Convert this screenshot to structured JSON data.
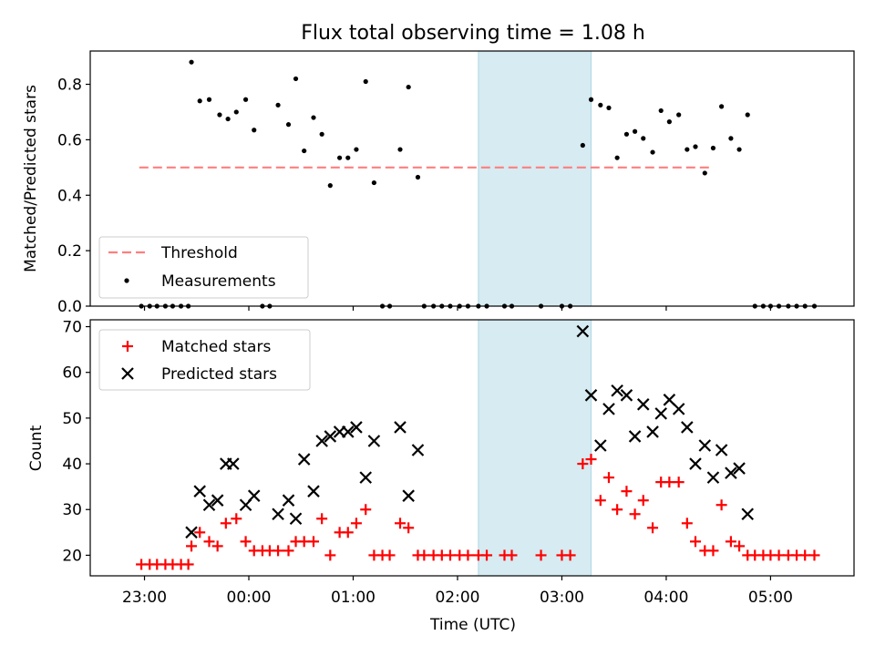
{
  "title": "Flux total observing time = 1.08 h",
  "chart_data": [
    {
      "type": "scatter",
      "ylabel": "Matched/Predicted stars",
      "xlabel": "",
      "xlim": [
        -0.52,
        6.8
      ],
      "ylim": [
        0,
        0.92
      ],
      "yticks": [
        "0.0",
        "0.2",
        "0.4",
        "0.6",
        "0.8"
      ],
      "shaded_region": [
        3.2,
        4.28
      ],
      "threshold": {
        "name": "Threshold",
        "y": 0.5,
        "x": [
          -0.05,
          5.42
        ],
        "color": "#ff7f7f"
      },
      "legend": {
        "placement": "lower left",
        "entries": [
          "Threshold",
          "Measurements"
        ]
      },
      "series": [
        {
          "name": "Measurements",
          "color": "#000000",
          "points": [
            [
              -0.03,
              0
            ],
            [
              0.05,
              0
            ],
            [
              0.12,
              0
            ],
            [
              0.2,
              0
            ],
            [
              0.27,
              0
            ],
            [
              0.35,
              0
            ],
            [
              0.42,
              0
            ],
            [
              0.45,
              0.88
            ],
            [
              0.53,
              0.74
            ],
            [
              0.62,
              0.745
            ],
            [
              0.72,
              0.69
            ],
            [
              0.8,
              0.675
            ],
            [
              0.88,
              0.7
            ],
            [
              0.97,
              0.745
            ],
            [
              1.05,
              0.635
            ],
            [
              1.13,
              0
            ],
            [
              1.2,
              0
            ],
            [
              1.28,
              0.725
            ],
            [
              1.38,
              0.655
            ],
            [
              1.45,
              0.82
            ],
            [
              1.53,
              0.56
            ],
            [
              1.62,
              0.68
            ],
            [
              1.7,
              0.62
            ],
            [
              1.78,
              0.435
            ],
            [
              1.87,
              0.535
            ],
            [
              1.95,
              0.535
            ],
            [
              2.03,
              0.565
            ],
            [
              2.12,
              0.81
            ],
            [
              2.2,
              0.445
            ],
            [
              2.28,
              0
            ],
            [
              2.35,
              0
            ],
            [
              2.45,
              0.565
            ],
            [
              2.53,
              0.79
            ],
            [
              2.62,
              0.465
            ],
            [
              2.68,
              0
            ],
            [
              2.77,
              0
            ],
            [
              2.85,
              0
            ],
            [
              2.93,
              0
            ],
            [
              3.02,
              0
            ],
            [
              3.1,
              0
            ],
            [
              3.2,
              0
            ],
            [
              3.28,
              0
            ],
            [
              3.45,
              0
            ],
            [
              3.52,
              0
            ],
            [
              3.8,
              0
            ],
            [
              4.0,
              0
            ],
            [
              4.08,
              0
            ],
            [
              4.2,
              0.58
            ],
            [
              4.28,
              0.745
            ],
            [
              4.37,
              0.725
            ],
            [
              4.45,
              0.715
            ],
            [
              4.53,
              0.535
            ],
            [
              4.62,
              0.62
            ],
            [
              4.7,
              0.63
            ],
            [
              4.78,
              0.605
            ],
            [
              4.87,
              0.555
            ],
            [
              4.95,
              0.705
            ],
            [
              5.03,
              0.665
            ],
            [
              5.12,
              0.69
            ],
            [
              5.2,
              0.565
            ],
            [
              5.28,
              0.575
            ],
            [
              5.37,
              0.48
            ],
            [
              5.45,
              0.57
            ],
            [
              5.53,
              0.72
            ],
            [
              5.62,
              0.605
            ],
            [
              5.7,
              0.565
            ],
            [
              5.78,
              0.69
            ],
            [
              5.85,
              0
            ],
            [
              5.93,
              0
            ],
            [
              6.0,
              0
            ],
            [
              6.08,
              0
            ],
            [
              6.17,
              0
            ],
            [
              6.25,
              0
            ],
            [
              6.33,
              0
            ],
            [
              6.42,
              0
            ]
          ]
        }
      ]
    },
    {
      "type": "scatter",
      "ylabel": "Count",
      "xlabel": "Time (UTC)",
      "xlim": [
        -0.52,
        6.8
      ],
      "ylim": [
        15.5,
        71.5
      ],
      "xticks": [
        "23:00",
        "00:00",
        "01:00",
        "02:00",
        "03:00",
        "04:00",
        "05:00"
      ],
      "yticks": [
        "20",
        "30",
        "40",
        "50",
        "60",
        "70"
      ],
      "shaded_region": [
        3.2,
        4.28
      ],
      "legend": {
        "placement": "upper left",
        "entries": [
          "Matched stars",
          "Predicted stars"
        ]
      },
      "series": [
        {
          "name": "Matched stars",
          "marker": "plus",
          "color": "#ff0000",
          "points": [
            [
              -0.03,
              18
            ],
            [
              0.05,
              18
            ],
            [
              0.12,
              18
            ],
            [
              0.2,
              18
            ],
            [
              0.27,
              18
            ],
            [
              0.35,
              18
            ],
            [
              0.42,
              18
            ],
            [
              0.45,
              22
            ],
            [
              0.53,
              25
            ],
            [
              0.62,
              23
            ],
            [
              0.7,
              22
            ],
            [
              0.78,
              27
            ],
            [
              0.88,
              28
            ],
            [
              0.97,
              23
            ],
            [
              1.05,
              21
            ],
            [
              1.13,
              21
            ],
            [
              1.2,
              21
            ],
            [
              1.28,
              21
            ],
            [
              1.38,
              21
            ],
            [
              1.45,
              23
            ],
            [
              1.53,
              23
            ],
            [
              1.62,
              23
            ],
            [
              1.7,
              28
            ],
            [
              1.78,
              20
            ],
            [
              1.87,
              25
            ],
            [
              1.95,
              25
            ],
            [
              2.03,
              27
            ],
            [
              2.12,
              30
            ],
            [
              2.2,
              20
            ],
            [
              2.28,
              20
            ],
            [
              2.35,
              20
            ],
            [
              2.45,
              27
            ],
            [
              2.53,
              26
            ],
            [
              2.62,
              20
            ],
            [
              2.68,
              20
            ],
            [
              2.77,
              20
            ],
            [
              2.85,
              20
            ],
            [
              2.93,
              20
            ],
            [
              3.02,
              20
            ],
            [
              3.1,
              20
            ],
            [
              3.2,
              20
            ],
            [
              3.28,
              20
            ],
            [
              3.45,
              20
            ],
            [
              3.52,
              20
            ],
            [
              3.8,
              20
            ],
            [
              4.0,
              20
            ],
            [
              4.08,
              20
            ],
            [
              4.2,
              40
            ],
            [
              4.28,
              41
            ],
            [
              4.37,
              32
            ],
            [
              4.45,
              37
            ],
            [
              4.53,
              30
            ],
            [
              4.62,
              34
            ],
            [
              4.7,
              29
            ],
            [
              4.78,
              32
            ],
            [
              4.87,
              26
            ],
            [
              4.95,
              36
            ],
            [
              5.03,
              36
            ],
            [
              5.12,
              36
            ],
            [
              5.2,
              27
            ],
            [
              5.28,
              23
            ],
            [
              5.37,
              21
            ],
            [
              5.45,
              21
            ],
            [
              5.53,
              31
            ],
            [
              5.62,
              23
            ],
            [
              5.7,
              22
            ],
            [
              5.78,
              20
            ],
            [
              5.85,
              20
            ],
            [
              5.93,
              20
            ],
            [
              6.0,
              20
            ],
            [
              6.08,
              20
            ],
            [
              6.17,
              20
            ],
            [
              6.25,
              20
            ],
            [
              6.33,
              20
            ],
            [
              6.42,
              20
            ]
          ]
        },
        {
          "name": "Predicted stars",
          "marker": "x",
          "color": "#000000",
          "points": [
            [
              0.45,
              25
            ],
            [
              0.53,
              34
            ],
            [
              0.62,
              31
            ],
            [
              0.7,
              32
            ],
            [
              0.78,
              40
            ],
            [
              0.85,
              40
            ],
            [
              0.97,
              31
            ],
            [
              1.05,
              33
            ],
            [
              1.28,
              29
            ],
            [
              1.38,
              32
            ],
            [
              1.45,
              28
            ],
            [
              1.53,
              41
            ],
            [
              1.62,
              34
            ],
            [
              1.7,
              45
            ],
            [
              1.78,
              46
            ],
            [
              1.87,
              47
            ],
            [
              1.95,
              47
            ],
            [
              2.03,
              48
            ],
            [
              2.12,
              37
            ],
            [
              2.2,
              45
            ],
            [
              2.45,
              48
            ],
            [
              2.53,
              33
            ],
            [
              2.62,
              43
            ],
            [
              4.2,
              69
            ],
            [
              4.28,
              55
            ],
            [
              4.37,
              44
            ],
            [
              4.45,
              52
            ],
            [
              4.53,
              56
            ],
            [
              4.62,
              55
            ],
            [
              4.7,
              46
            ],
            [
              4.78,
              53
            ],
            [
              4.87,
              47
            ],
            [
              4.95,
              51
            ],
            [
              5.03,
              54
            ],
            [
              5.12,
              52
            ],
            [
              5.2,
              48
            ],
            [
              5.28,
              40
            ],
            [
              5.37,
              44
            ],
            [
              5.45,
              37
            ],
            [
              5.53,
              43
            ],
            [
              5.62,
              38
            ],
            [
              5.7,
              39
            ],
            [
              5.78,
              29
            ]
          ]
        }
      ]
    }
  ]
}
